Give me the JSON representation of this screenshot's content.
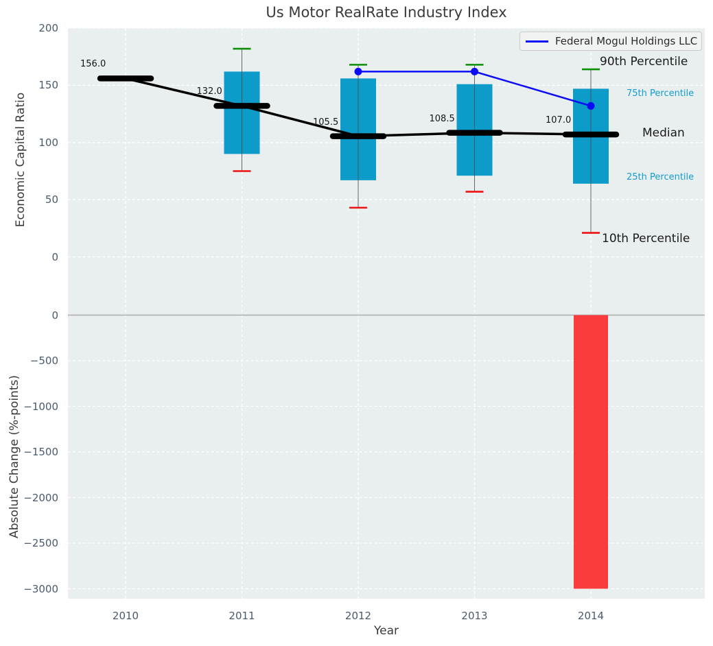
{
  "title": "Us Motor RealRate Industry Index",
  "legend": {
    "series_label": "Federal Mogul Holdings LLC"
  },
  "annotations": {
    "p90": "90th Percentile",
    "p75": "75th Percentile",
    "median": "Median",
    "p25": "25th Percentile",
    "p10": "10th Percentile"
  },
  "colors": {
    "box_fill": "#0D9BC9",
    "bar_fill": "#FA3C3E",
    "company_line": "#0B0BF5",
    "median_line": "#000000",
    "p90_cap": "#089000",
    "p10_cap": "#EE1111",
    "whisker": "#4D4D4D",
    "grid": "#FFFFFF",
    "zero_line": "#ABABAB",
    "plot_bg": "#E9EEEF",
    "tick_text": "#4A5A6C",
    "percentile_label_accent": "#149CCE"
  },
  "chart_data": {
    "type": "combo",
    "title": "Us Motor RealRate Industry Index",
    "xlabel": "Year",
    "xticks": [
      2010,
      2011,
      2012,
      2013,
      2014
    ],
    "xtick_labels": [
      "2010",
      "2011",
      "2012",
      "2013",
      "2014"
    ],
    "legend_position": "upper right",
    "grid": true,
    "top_panel": {
      "type": "box",
      "ylabel": "Economic Capital Ratio",
      "ylim": [
        -50,
        200
      ],
      "yticks": [
        200,
        150,
        100,
        50,
        0
      ],
      "ytick_labels": [
        "200",
        "150",
        "100",
        "50",
        "0"
      ],
      "boxes": [
        {
          "year": 2010,
          "p90": null,
          "p75": null,
          "median": 156.0,
          "p25": null,
          "p10": null,
          "median_label": "156.0"
        },
        {
          "year": 2011,
          "p90": 182,
          "p75": 162,
          "median": 132.0,
          "p25": 90,
          "p10": 75,
          "median_label": "132.0"
        },
        {
          "year": 2012,
          "p90": 168,
          "p75": 156,
          "median": 105.5,
          "p25": 67,
          "p10": 43,
          "median_label": "105.5"
        },
        {
          "year": 2013,
          "p90": 168,
          "p75": 151,
          "median": 108.5,
          "p25": 71,
          "p10": 57,
          "median_label": "108.5"
        },
        {
          "year": 2014,
          "p90": 164,
          "p75": 147,
          "median": 107.0,
          "p25": 64,
          "p10": 21,
          "median_label": "107.0"
        }
      ],
      "series": [
        {
          "name": "Federal Mogul Holdings LLC",
          "points": [
            {
              "year": 2012,
              "value": 162
            },
            {
              "year": 2013,
              "value": 162
            },
            {
              "year": 2014,
              "value": 132
            }
          ]
        }
      ]
    },
    "bottom_panel": {
      "type": "bar",
      "ylabel": "Absolute Change (%-points)",
      "ylim": [
        -3120,
        0
      ],
      "yticks": [
        0,
        -500,
        -1000,
        -1500,
        -2000,
        -2500,
        -3000
      ],
      "ytick_labels": [
        "0",
        "−500",
        "−1000",
        "−1500",
        "−2000",
        "−2500",
        "−3000"
      ],
      "bars": [
        {
          "year": 2014,
          "value": -3000
        }
      ]
    }
  }
}
